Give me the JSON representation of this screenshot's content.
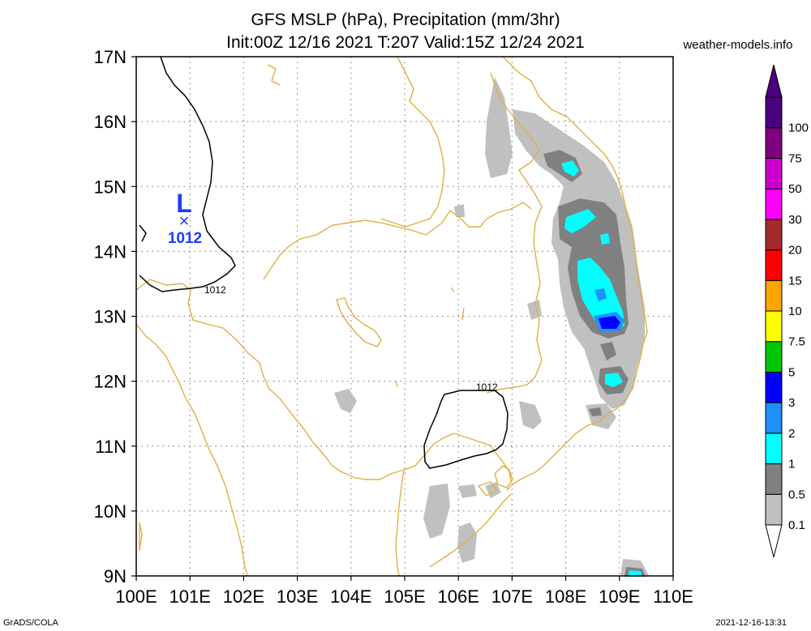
{
  "title_line1": "GFS MSLP (hPa), Precipitation (mm/3hr)",
  "title_line2": "Init:00Z 12/16 2021 T:207 Valid:15Z 12/24 2021",
  "site": "weather-models.info",
  "footer_left": "GrADS/COLA",
  "footer_right": "2021-12-16-13:31",
  "lat_labels": [
    "17N",
    "16N",
    "15N",
    "14N",
    "13N",
    "12N",
    "11N",
    "10N",
    "9N"
  ],
  "lon_labels": [
    "100E",
    "101E",
    "102E",
    "103E",
    "104E",
    "105E",
    "106E",
    "107E",
    "108E",
    "109E",
    "110E"
  ],
  "low": {
    "symbol": "L",
    "marker": "×",
    "value": "1012"
  },
  "isobar_labels": [
    "1012",
    "1012"
  ],
  "colorbar": {
    "labels": [
      "0.1",
      "0.5",
      "1",
      "2",
      "3",
      "5",
      "7.5",
      "10",
      "15",
      "20",
      "30",
      "50",
      "75",
      "100"
    ],
    "colors": [
      "#c0c0c0",
      "#808080",
      "#00ffff",
      "#1e90ff",
      "#0000ff",
      "#00c800",
      "#ffff00",
      "#ffa500",
      "#ff0000",
      "#a52a2a",
      "#ff00ff",
      "#cc00cc",
      "#800080",
      "#4b0082"
    ]
  },
  "colors": {
    "coast": "#e0b040",
    "grid": "#888888",
    "isobar": "#000000",
    "low": "#1e3cff"
  }
}
